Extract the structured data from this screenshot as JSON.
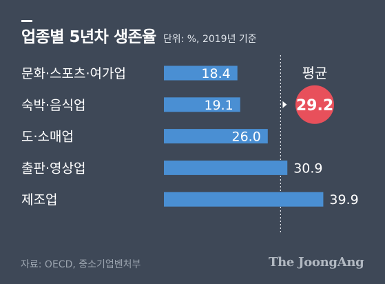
{
  "header": {
    "title": "업종별 5년차 생존율",
    "subtitle": "단위: %, 2019년 기준"
  },
  "chart_data": {
    "type": "bar",
    "orientation": "horizontal",
    "categories": [
      "문화·스포츠·여가업",
      "숙박·음식업",
      "도·소매업",
      "출판·영상업",
      "제조업"
    ],
    "values": [
      18.4,
      19.1,
      26.0,
      30.9,
      39.9
    ],
    "value_labels": [
      "18.4",
      "19.1",
      "26.0",
      "30.9",
      "39.9"
    ],
    "average": {
      "label": "평균",
      "value": 29.2,
      "value_label": "29.2"
    },
    "xlim": [
      0,
      40
    ],
    "grid": false,
    "colors": {
      "bar": "#4a8fd3",
      "average_badge": "#e8505b",
      "background": "#3e4857",
      "text": "#ffffff"
    }
  },
  "footer": {
    "source": "자료: OECD, 중소기업벤처부",
    "logo": "The JoongAng"
  }
}
